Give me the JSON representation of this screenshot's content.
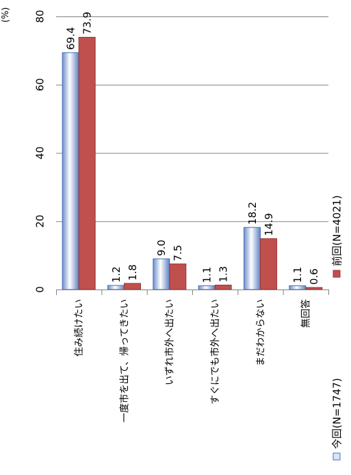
{
  "chart_data": {
    "type": "bar",
    "unit_label": "(%)",
    "categories": [
      "住み続けたい",
      "一度市を出て、帰ってきたい",
      "いずれ市外へ出たい",
      "すぐにでも市外へ出たい",
      "まだわからない",
      "無回答"
    ],
    "series": [
      {
        "name": "今回(N=1747)",
        "values": [
          69.4,
          1.2,
          9.0,
          1.1,
          18.2,
          1.1
        ],
        "labels": [
          "69.4",
          "1.2",
          "9.0",
          "1.1",
          "18.2",
          "1.1"
        ],
        "color": "#9db4dc"
      },
      {
        "name": "前回(N=4021)",
        "values": [
          73.9,
          1.8,
          7.5,
          1.3,
          14.9,
          0.6
        ],
        "labels": [
          "73.9",
          "1.8",
          "7.5",
          "1.3",
          "14.9",
          "0.6"
        ],
        "color": "#c0504d"
      }
    ],
    "ylim": [
      0,
      80
    ],
    "yticks": [
      "0",
      "20",
      "40",
      "60",
      "80"
    ],
    "grid": true,
    "legend_position": "bottom-right"
  }
}
